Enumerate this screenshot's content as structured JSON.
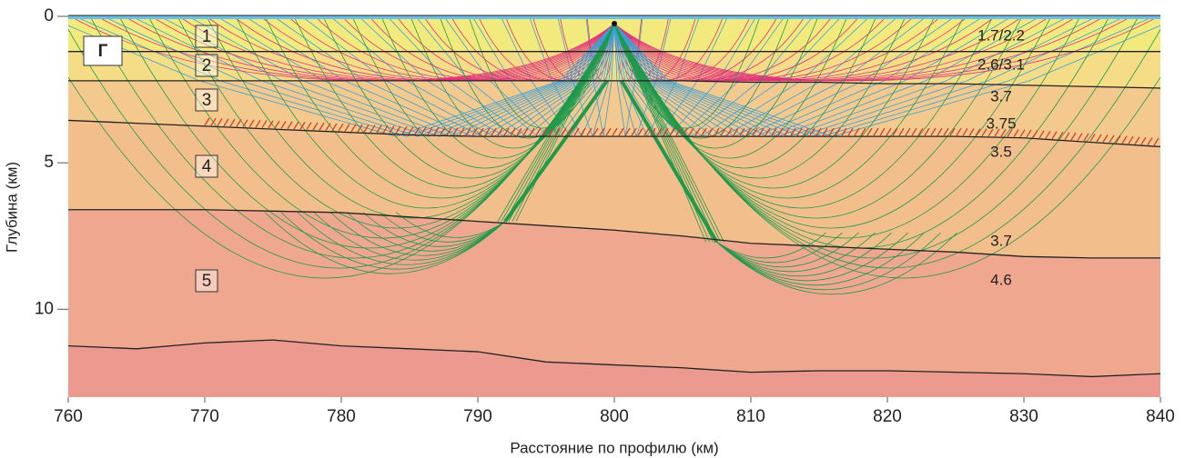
{
  "chart_data": {
    "type": "line",
    "xlabel": "Расстояние по профилю (км)",
    "ylabel": "Глубина (км)",
    "xlim": [
      760,
      840
    ],
    "ylim": [
      0,
      13
    ],
    "y_inverted": true,
    "xticks": [
      760,
      770,
      780,
      790,
      800,
      810,
      820,
      830,
      840
    ],
    "yticks": [
      0,
      5,
      10
    ],
    "x": [
      760,
      765,
      770,
      775,
      780,
      785,
      790,
      795,
      800,
      805,
      810,
      815,
      820,
      825,
      830,
      835,
      840
    ],
    "series": [
      {
        "color": "#222222",
        "values": [
          1.2,
          1.2,
          1.2,
          1.2,
          1.2,
          1.2,
          1.2,
          1.2,
          1.2,
          1.2,
          1.2,
          1.2,
          1.2,
          1.2,
          1.2,
          1.2,
          1.2
        ]
      },
      {
        "color": "#222222",
        "values": [
          2.2,
          2.2,
          2.2,
          2.2,
          2.2,
          2.2,
          2.2,
          2.2,
          2.2,
          2.2,
          2.25,
          2.25,
          2.3,
          2.3,
          2.35,
          2.4,
          2.45
        ]
      },
      {
        "color": "#222222",
        "values": [
          3.55,
          3.65,
          3.75,
          3.85,
          3.95,
          4.05,
          4.1,
          4.1,
          4.1,
          4.1,
          4.1,
          4.1,
          4.1,
          4.1,
          4.15,
          4.3,
          4.45
        ]
      },
      {
        "color": "#222222",
        "values": [
          6.6,
          6.6,
          6.6,
          6.65,
          6.7,
          6.85,
          7.0,
          7.15,
          7.3,
          7.5,
          7.75,
          7.85,
          7.95,
          8.05,
          8.2,
          8.25,
          8.25
        ]
      },
      {
        "color": "#222222",
        "values": [
          11.25,
          11.35,
          11.15,
          11.05,
          11.25,
          11.35,
          11.45,
          11.8,
          11.9,
          12.0,
          12.15,
          12.1,
          12.1,
          12.15,
          12.2,
          12.3,
          12.2
        ]
      }
    ],
    "panel_label": "Г",
    "layer_labels": [
      "1",
      "2",
      "3",
      "4",
      "5"
    ],
    "velocity_labels": [
      "1.7/2.2",
      "2.6/3.1",
      "3.7",
      "3.75",
      "3.5",
      "3.7",
      "4.6"
    ]
  }
}
